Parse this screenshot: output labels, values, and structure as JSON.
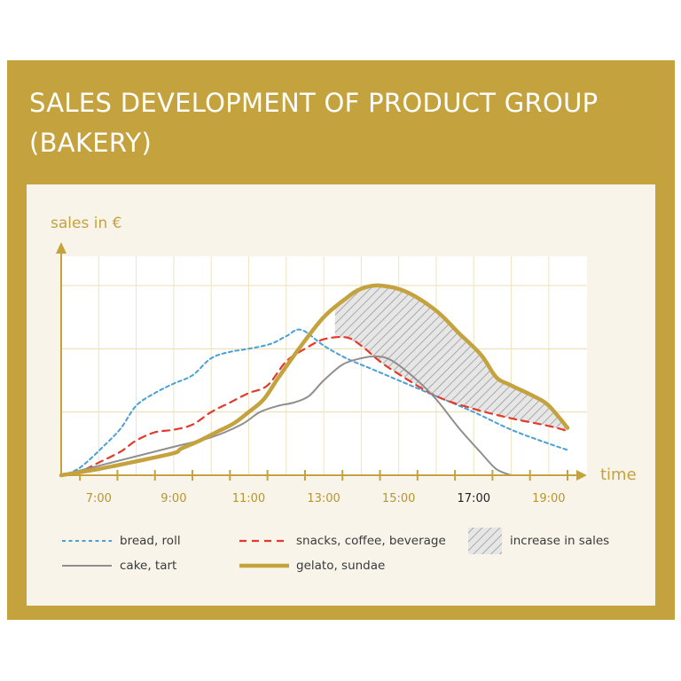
{
  "title": "SALES DEVELOPMENT OF PRODUCT GROUP (BAKERY)",
  "colors": {
    "frame": "#c4a23e",
    "panel": "#f8f4ea",
    "axis": "#c4a23e",
    "bread_roll": "#4a9fd5",
    "snacks": "#e23a2c",
    "cake": "#8f8f8f",
    "gelato": "#c4a23e",
    "hatch": "#9a9a9a"
  },
  "chart_data": {
    "type": "line",
    "xlabel": "time",
    "ylabel": "sales in €",
    "x_ticks": [
      "7:00",
      "9:00",
      "11:00",
      "13:00",
      "15:00",
      "17:00",
      "19:00"
    ],
    "xlim": [
      6.0,
      19.5
    ],
    "ylim": [
      0,
      3.0
    ],
    "grid": true,
    "series": [
      {
        "name": "bread, roll",
        "style": "dotted",
        "points": [
          [
            6.0,
            0.0
          ],
          [
            6.5,
            0.12
          ],
          [
            7.2,
            0.5
          ],
          [
            7.6,
            0.75
          ],
          [
            8.0,
            1.1
          ],
          [
            8.5,
            1.3
          ],
          [
            9.0,
            1.45
          ],
          [
            9.5,
            1.58
          ],
          [
            10.0,
            1.85
          ],
          [
            10.5,
            1.95
          ],
          [
            11.0,
            2.0
          ],
          [
            11.6,
            2.08
          ],
          [
            12.0,
            2.2
          ],
          [
            12.4,
            2.3
          ],
          [
            13.0,
            2.05
          ],
          [
            13.6,
            1.85
          ],
          [
            14.2,
            1.7
          ],
          [
            15.0,
            1.5
          ],
          [
            16.0,
            1.25
          ],
          [
            17.0,
            1.0
          ],
          [
            18.0,
            0.72
          ],
          [
            19.0,
            0.5
          ],
          [
            19.5,
            0.4
          ]
        ]
      },
      {
        "name": "snacks, coffee, beverage",
        "style": "dashed",
        "points": [
          [
            6.0,
            0.0
          ],
          [
            6.5,
            0.06
          ],
          [
            7.0,
            0.2
          ],
          [
            7.6,
            0.38
          ],
          [
            8.0,
            0.55
          ],
          [
            8.5,
            0.68
          ],
          [
            9.0,
            0.72
          ],
          [
            9.5,
            0.8
          ],
          [
            10.0,
            1.0
          ],
          [
            10.5,
            1.15
          ],
          [
            11.0,
            1.3
          ],
          [
            11.5,
            1.42
          ],
          [
            12.0,
            1.8
          ],
          [
            12.5,
            2.0
          ],
          [
            13.0,
            2.15
          ],
          [
            13.6,
            2.18
          ],
          [
            14.0,
            2.05
          ],
          [
            14.5,
            1.8
          ],
          [
            15.0,
            1.6
          ],
          [
            16.0,
            1.25
          ],
          [
            17.0,
            1.05
          ],
          [
            18.0,
            0.9
          ],
          [
            19.0,
            0.78
          ],
          [
            19.5,
            0.7
          ]
        ]
      },
      {
        "name": "cake, tart",
        "style": "solid",
        "points": [
          [
            6.0,
            0.0
          ],
          [
            7.0,
            0.15
          ],
          [
            8.0,
            0.3
          ],
          [
            9.0,
            0.45
          ],
          [
            10.0,
            0.6
          ],
          [
            10.8,
            0.8
          ],
          [
            11.3,
            1.0
          ],
          [
            11.8,
            1.1
          ],
          [
            12.2,
            1.15
          ],
          [
            12.6,
            1.25
          ],
          [
            13.0,
            1.5
          ],
          [
            13.5,
            1.75
          ],
          [
            14.0,
            1.85
          ],
          [
            14.4,
            1.88
          ],
          [
            14.8,
            1.82
          ],
          [
            15.4,
            1.55
          ],
          [
            16.0,
            1.2
          ],
          [
            16.6,
            0.75
          ],
          [
            17.2,
            0.35
          ],
          [
            17.6,
            0.1
          ],
          [
            18.0,
            0.0
          ]
        ]
      },
      {
        "name": "gelato, sundae",
        "style": "thick",
        "points": [
          [
            6.0,
            0.0
          ],
          [
            7.0,
            0.1
          ],
          [
            8.0,
            0.22
          ],
          [
            9.0,
            0.35
          ],
          [
            9.2,
            0.42
          ],
          [
            9.7,
            0.55
          ],
          [
            10.2,
            0.7
          ],
          [
            10.6,
            0.82
          ],
          [
            11.0,
            1.0
          ],
          [
            11.4,
            1.2
          ],
          [
            11.8,
            1.55
          ],
          [
            12.4,
            2.05
          ],
          [
            13.0,
            2.5
          ],
          [
            13.6,
            2.8
          ],
          [
            14.0,
            2.95
          ],
          [
            14.5,
            3.0
          ],
          [
            15.2,
            2.9
          ],
          [
            16.0,
            2.6
          ],
          [
            16.6,
            2.25
          ],
          [
            17.2,
            1.9
          ],
          [
            17.6,
            1.55
          ],
          [
            18.0,
            1.42
          ],
          [
            18.6,
            1.25
          ],
          [
            19.0,
            1.1
          ],
          [
            19.5,
            0.75
          ]
        ]
      }
    ],
    "increase_region": {
      "label": "increase in sales",
      "x_range": [
        13.3,
        19.5
      ]
    }
  },
  "legend": {
    "bread_roll": "bread, roll",
    "snacks": "snacks, coffee, beverage",
    "increase": "increase in sales",
    "cake": "cake, tart",
    "gelato": "gelato, sundae"
  }
}
